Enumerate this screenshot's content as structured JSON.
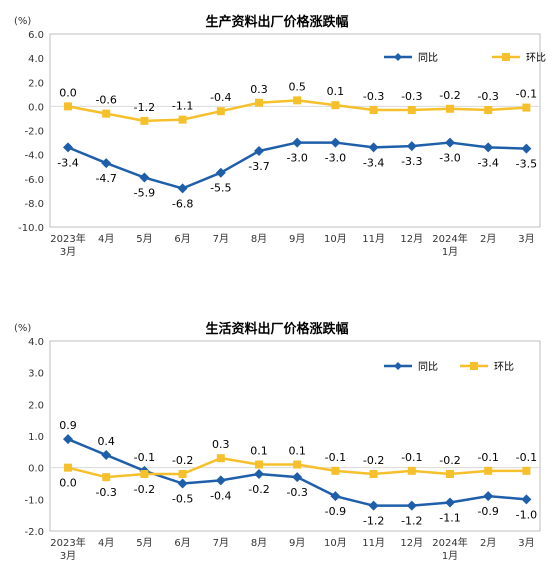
{
  "chart_data": [
    {
      "type": "line",
      "title": "生产资料出厂价格涨跌幅",
      "unit_label": "(%)",
      "categories": [
        [
          "2023年",
          "3月"
        ],
        [
          "4月"
        ],
        [
          "5月"
        ],
        [
          "6月"
        ],
        [
          "7月"
        ],
        [
          "8月"
        ],
        [
          "9月"
        ],
        [
          "10月"
        ],
        [
          "11月"
        ],
        [
          "12月"
        ],
        [
          "2024年",
          "1月"
        ],
        [
          "2月"
        ],
        [
          "3月"
        ]
      ],
      "ylim": [
        -10.0,
        6.0
      ],
      "yticks": [
        "6.0",
        "4.0",
        "2.0",
        "0.0",
        "-2.0",
        "-4.0",
        "-6.0",
        "-8.0",
        "-10.0"
      ],
      "ytick_values": [
        6,
        4,
        2,
        0,
        -2,
        -4,
        -6,
        -8,
        -10
      ],
      "legend_position": "top-right",
      "grid": false,
      "series": [
        {
          "name": "同比",
          "color": "#1f5faa",
          "marker": "diamond",
          "values": [
            -3.4,
            -4.7,
            -5.9,
            -6.8,
            -5.5,
            -3.7,
            -3.0,
            -3.0,
            -3.4,
            -3.3,
            -3.0,
            -3.4,
            -3.5
          ],
          "labels": [
            "-3.4",
            "-4.7",
            "-5.9",
            "-6.8",
            "-5.5",
            "-3.7",
            "-3.0",
            "-3.0",
            "-3.4",
            "-3.3",
            "-3.0",
            "-3.4",
            "-3.5"
          ],
          "label_side": "below"
        },
        {
          "name": "环比",
          "color": "#f5c02b",
          "marker": "square",
          "values": [
            0.0,
            -0.6,
            -1.2,
            -1.1,
            -0.4,
            0.3,
            0.5,
            0.1,
            -0.3,
            -0.3,
            -0.2,
            -0.3,
            -0.1
          ],
          "labels": [
            "0.0",
            "-0.6",
            "-1.2",
            "-1.1",
            "-0.4",
            "0.3",
            "0.5",
            "0.1",
            "-0.3",
            "-0.3",
            "-0.2",
            "-0.3",
            "-0.1"
          ],
          "label_side": "above"
        }
      ]
    },
    {
      "type": "line",
      "title": "生活资料出厂价格涨跌幅",
      "unit_label": "(%)",
      "categories": [
        [
          "2023年",
          "3月"
        ],
        [
          "4月"
        ],
        [
          "5月"
        ],
        [
          "6月"
        ],
        [
          "7月"
        ],
        [
          "8月"
        ],
        [
          "9月"
        ],
        [
          "10月"
        ],
        [
          "11月"
        ],
        [
          "12月"
        ],
        [
          "2024年",
          "1月"
        ],
        [
          "2月"
        ],
        [
          "3月"
        ]
      ],
      "ylim": [
        -2.0,
        4.0
      ],
      "yticks": [
        "4.0",
        "3.0",
        "2.0",
        "1.0",
        "0.0",
        "-1.0",
        "-2.0"
      ],
      "ytick_values": [
        4,
        3,
        2,
        1,
        0,
        -1,
        -2
      ],
      "legend_position": "top-right",
      "grid": false,
      "series": [
        {
          "name": "同比",
          "color": "#1f5faa",
          "marker": "diamond",
          "values": [
            0.9,
            0.4,
            -0.1,
            -0.5,
            -0.4,
            -0.2,
            -0.3,
            -0.9,
            -1.2,
            -1.2,
            -1.1,
            -0.9,
            -1.0
          ],
          "labels": [
            "0.9",
            "0.4",
            "-0.1",
            "-0.5",
            "-0.4",
            "-0.2",
            "-0.3",
            "-0.9",
            "-1.2",
            "-1.2",
            "-1.1",
            "-0.9",
            "-1.0"
          ],
          "label_pos": [
            "above",
            "above",
            "above",
            "below",
            "below",
            "below",
            "below",
            "below",
            "below",
            "below",
            "below",
            "below",
            "below"
          ]
        },
        {
          "name": "环比",
          "color": "#f5c02b",
          "marker": "square",
          "values": [
            0.0,
            -0.3,
            -0.2,
            -0.2,
            0.3,
            0.1,
            0.1,
            -0.1,
            -0.2,
            -0.1,
            -0.2,
            -0.1,
            -0.1
          ],
          "labels": [
            "0.0",
            "-0.3",
            "-0.2",
            "-0.2",
            "0.3",
            "0.1",
            "0.1",
            "-0.1",
            "-0.2",
            "-0.1",
            "-0.2",
            "-0.1",
            "-0.1"
          ],
          "label_pos": [
            "below",
            "below",
            "below",
            "above",
            "above",
            "above",
            "above",
            "above",
            "above",
            "above",
            "above",
            "above",
            "above"
          ]
        }
      ]
    }
  ]
}
